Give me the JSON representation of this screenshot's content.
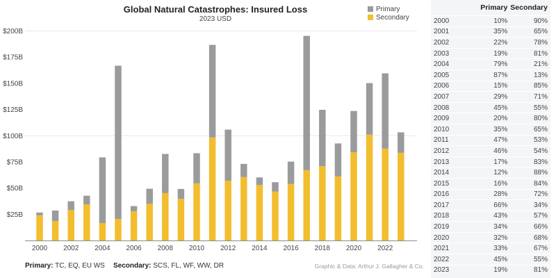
{
  "chart_data": {
    "type": "bar",
    "stacked": true,
    "title": "Global Natural Catastrophes: Insured Loss",
    "subtitle": "2023 USD",
    "xlabel": "",
    "ylabel": "",
    "ylim": [
      0,
      200
    ],
    "y_ticks": [
      25,
      50,
      75,
      100,
      125,
      150,
      175,
      200
    ],
    "y_tick_labels": [
      "$25B",
      "$50B",
      "$75B",
      "$100B",
      "$125B",
      "$150B",
      "$175B",
      "$200B"
    ],
    "x_tick_labels": [
      "2000",
      "2002",
      "2004",
      "2006",
      "2008",
      "2010",
      "2012",
      "2014",
      "2016",
      "2018",
      "2020",
      "2022"
    ],
    "grid": "horizontal at $100B and $200B",
    "legend_position": "top-right",
    "categories": [
      "2000",
      "2001",
      "2002",
      "2003",
      "2004",
      "2005",
      "2006",
      "2007",
      "2008",
      "2009",
      "2010",
      "2011",
      "2012",
      "2013",
      "2014",
      "2015",
      "2016",
      "2017",
      "2018",
      "2019",
      "2020",
      "2021",
      "2022",
      "2023"
    ],
    "series": [
      {
        "name": "Secondary",
        "color": "#f2bd2e",
        "values": [
          24,
          18.6,
          29,
          34.5,
          16.6,
          20.6,
          27.9,
          35,
          45.2,
          39.7,
          54.5,
          98.3,
          57.1,
          60.5,
          53,
          46.7,
          54,
          67.1,
          70.9,
          61.1,
          84.2,
          101,
          87.7,
          83.7
        ]
      },
      {
        "name": "Primary",
        "color": "#9a9b9d",
        "values": [
          2.7,
          10,
          8.4,
          8.2,
          62.7,
          146.2,
          4.9,
          14.4,
          37.4,
          9.5,
          28.8,
          88.4,
          48.7,
          12.6,
          7.2,
          8.9,
          21.3,
          128.2,
          53.8,
          31.5,
          39.4,
          49.2,
          71.8,
          19.5
        ]
      }
    ]
  },
  "legend": {
    "items": [
      {
        "label": "Primary",
        "color": "#9a9b9d"
      },
      {
        "label": "Secondary",
        "color": "#f2bd2e"
      }
    ]
  },
  "footnotes": {
    "primary_label": "Primary:",
    "primary_text": " TC, EQ, EU WS",
    "secondary_label": "Secondary:",
    "secondary_text": " SCS, FL, WF, WW, DR",
    "credit": "Graphic & Data: Arthur J. Gallagher & Co."
  },
  "table": {
    "headers": [
      "",
      "Primary",
      "Secondary"
    ],
    "rows": [
      [
        "2000",
        "10%",
        "90%"
      ],
      [
        "2001",
        "35%",
        "65%"
      ],
      [
        "2002",
        "22%",
        "78%"
      ],
      [
        "2003",
        "19%",
        "81%"
      ],
      [
        "2004",
        "79%",
        "21%"
      ],
      [
        "2005",
        "87%",
        "13%"
      ],
      [
        "2006",
        "15%",
        "85%"
      ],
      [
        "2007",
        "29%",
        "71%"
      ],
      [
        "2008",
        "45%",
        "55%"
      ],
      [
        "2009",
        "20%",
        "80%"
      ],
      [
        "2010",
        "35%",
        "65%"
      ],
      [
        "2011",
        "47%",
        "53%"
      ],
      [
        "2012",
        "46%",
        "54%"
      ],
      [
        "2013",
        "17%",
        "83%"
      ],
      [
        "2014",
        "12%",
        "88%"
      ],
      [
        "2015",
        "16%",
        "84%"
      ],
      [
        "2016",
        "28%",
        "72%"
      ],
      [
        "2017",
        "66%",
        "34%"
      ],
      [
        "2018",
        "43%",
        "57%"
      ],
      [
        "2019",
        "34%",
        "66%"
      ],
      [
        "2020",
        "32%",
        "68%"
      ],
      [
        "2021",
        "33%",
        "67%"
      ],
      [
        "2022",
        "45%",
        "55%"
      ],
      [
        "2023",
        "19%",
        "81%"
      ]
    ]
  }
}
